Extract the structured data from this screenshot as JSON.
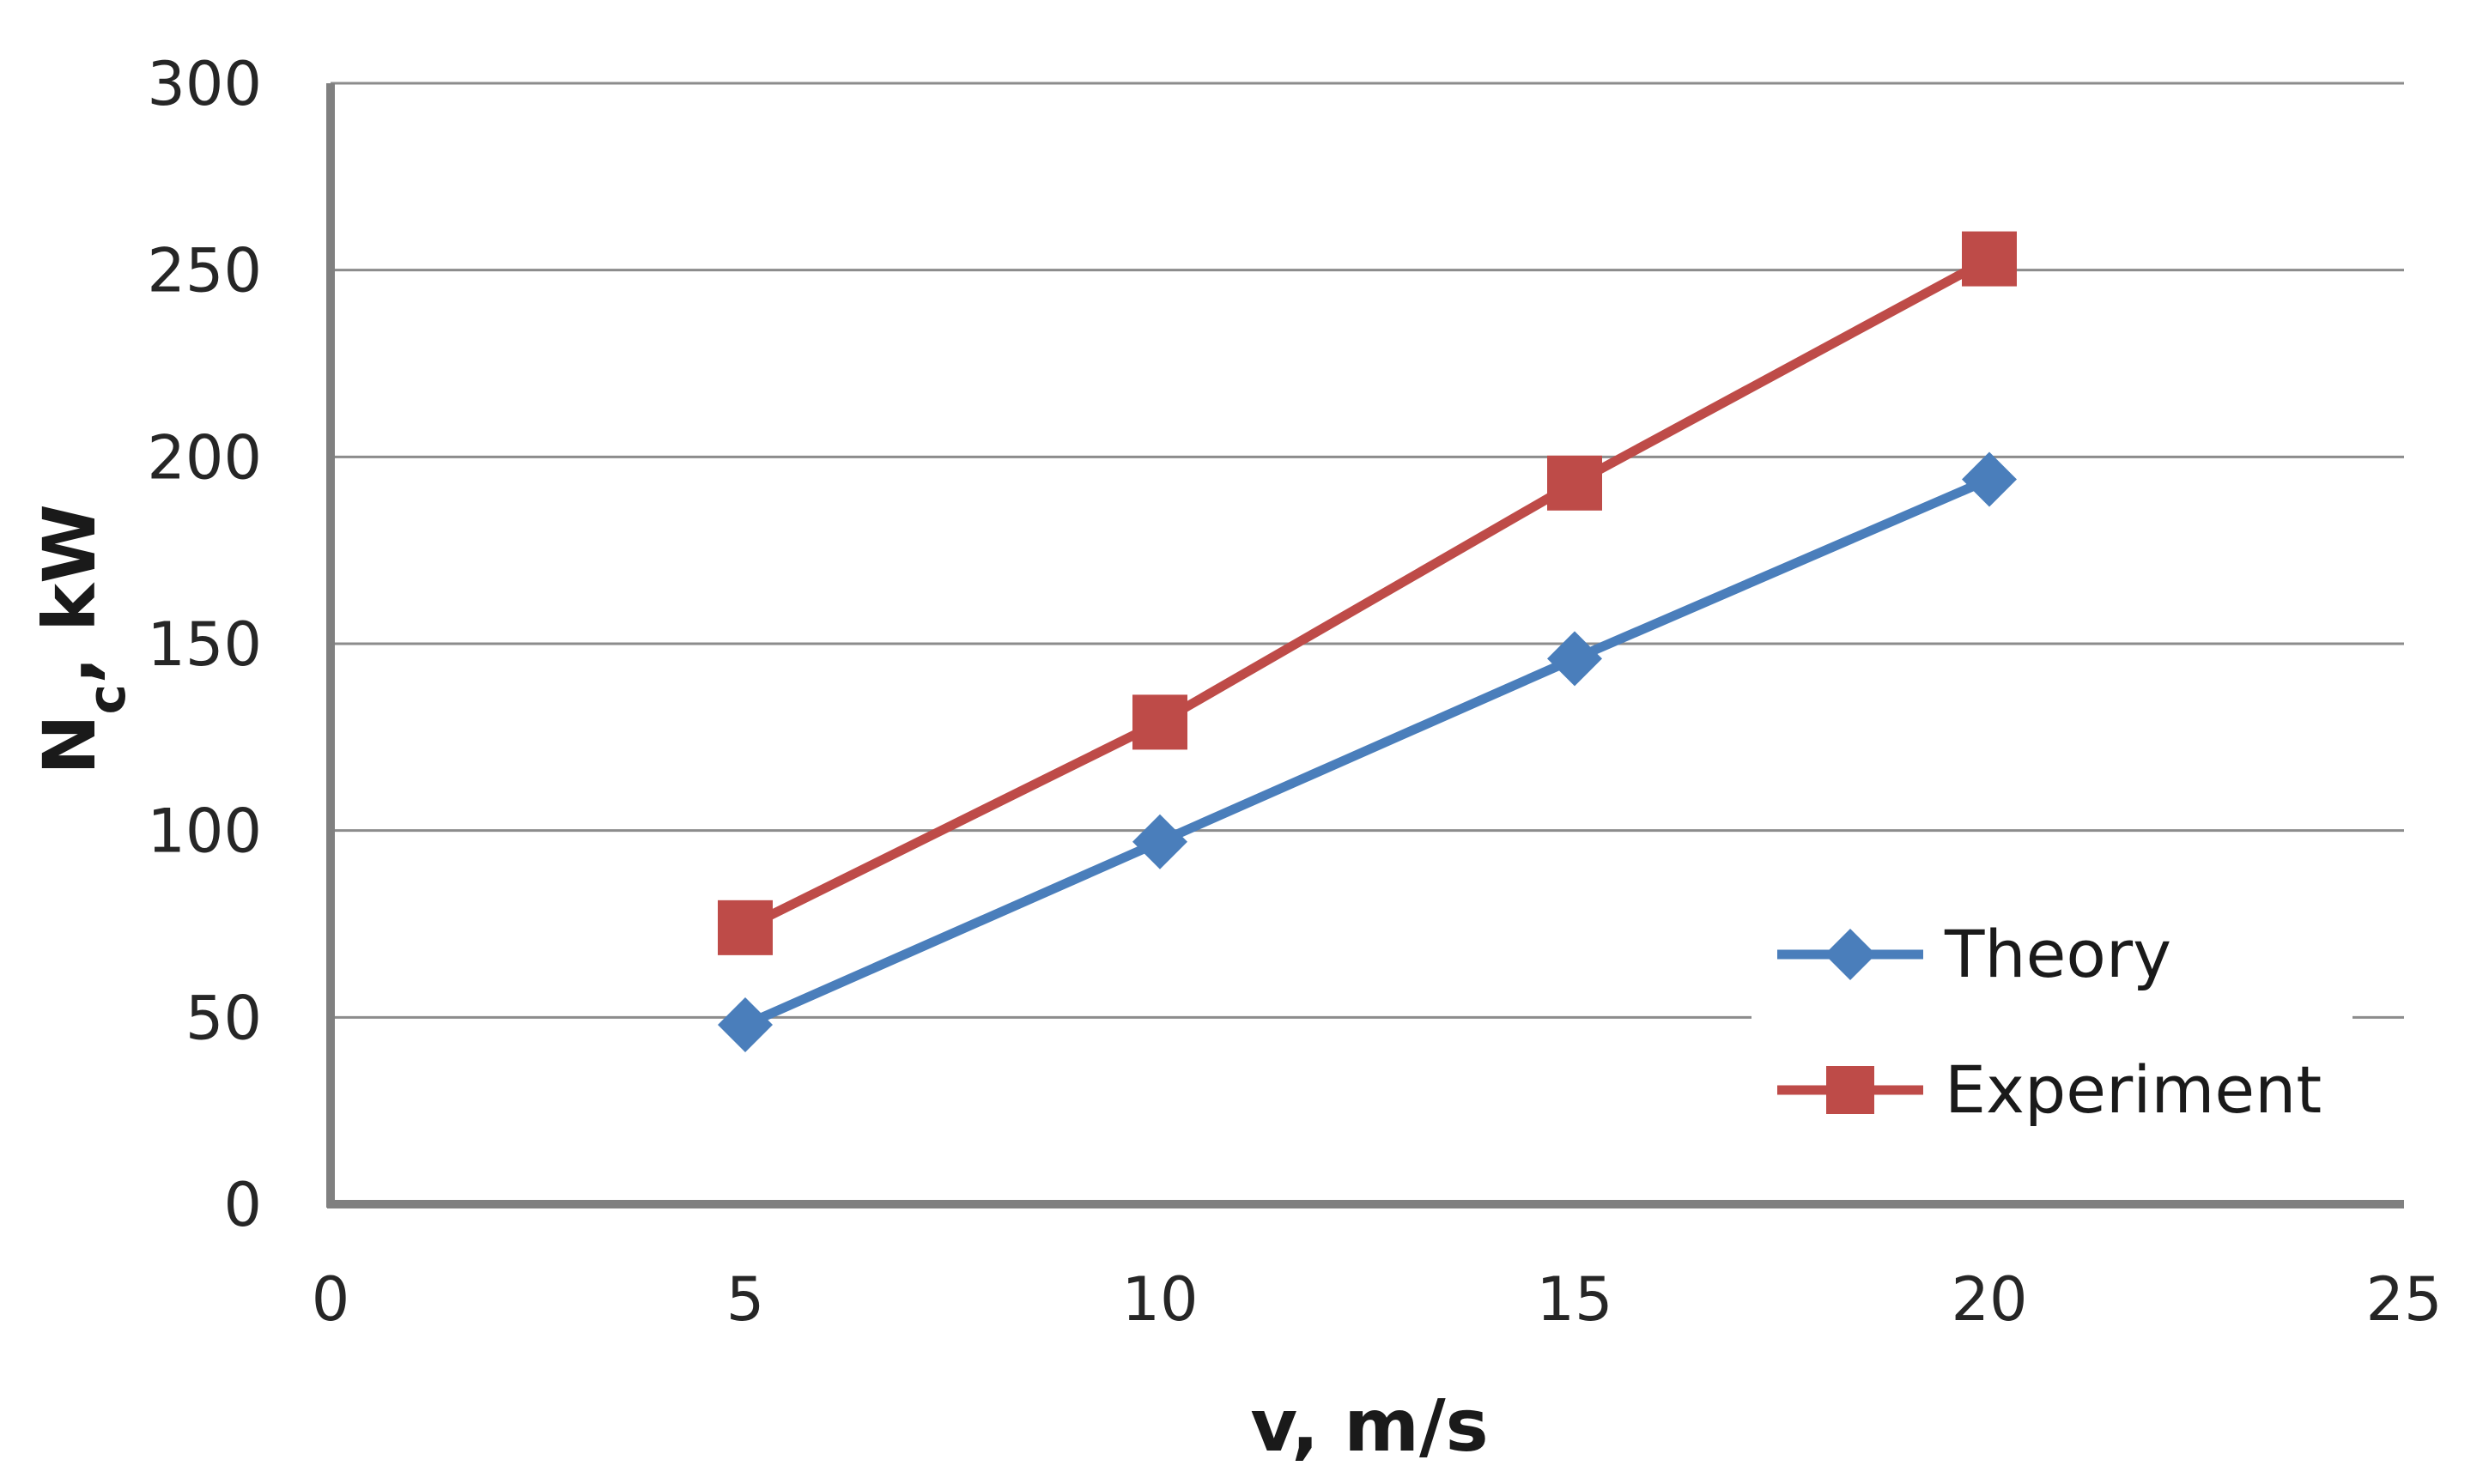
{
  "chart_data": {
    "type": "line",
    "title": "",
    "xlabel": "v, m/s",
    "ylabel_main": "N",
    "ylabel_sub": "c",
    "ylabel_rest": ", kW",
    "xlim": [
      0,
      25
    ],
    "ylim": [
      0,
      300
    ],
    "xticks": [
      0,
      5,
      10,
      15,
      20,
      25
    ],
    "yticks": [
      0,
      50,
      100,
      150,
      200,
      250,
      300
    ],
    "grid": "horizontal",
    "legend_position": "bottom-right",
    "series": [
      {
        "name": "Theory",
        "marker": "diamond",
        "color": "#4a7ebb",
        "x": [
          5,
          10,
          15,
          20
        ],
        "y": [
          48,
          97,
          146,
          194
        ]
      },
      {
        "name": "Experiment",
        "marker": "square",
        "color": "#be4b48",
        "x": [
          5,
          10,
          15,
          20
        ],
        "y": [
          74,
          129,
          193,
          253
        ]
      }
    ]
  }
}
